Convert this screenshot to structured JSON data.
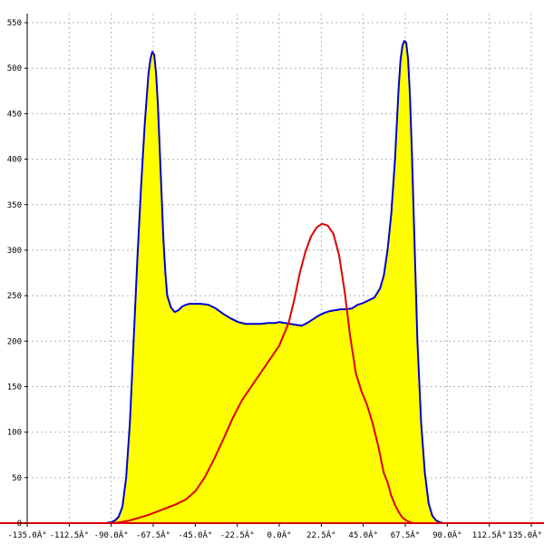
{
  "chart_data": {
    "type": "area",
    "title": "",
    "xlabel": "",
    "ylabel": "",
    "xlim": [
      -135,
      135
    ],
    "ylim": [
      0,
      560
    ],
    "grid": true,
    "x_ticks": [
      -135,
      -112.5,
      -90,
      -67.5,
      -45,
      -22.5,
      0,
      22.5,
      45,
      67.5,
      90,
      112.5,
      135
    ],
    "x_tick_labels": [
      "-135.0Â°",
      "-112.5Â°",
      "-90.0Â°",
      "-67.5Â°",
      "-45.0Â°",
      "-22.5Â°",
      "0.0Â°",
      "22.5Â°",
      "45.0Â°",
      "67.5Â°",
      "90.0Â°",
      "112.5Â°",
      "135.0Â°"
    ],
    "y_ticks": [
      0,
      50,
      100,
      150,
      200,
      250,
      300,
      350,
      400,
      450,
      500,
      550
    ],
    "y_tick_labels": [
      "0",
      "50",
      "100",
      "150",
      "200",
      "250",
      "300",
      "350",
      "400",
      "450",
      "500",
      "550"
    ],
    "series": [
      {
        "color": "#0000cc",
        "fill": "#ffff00",
        "x": [
          -93,
          -90,
          -88,
          -86,
          -84,
          -82,
          -80,
          -78,
          -76,
          -74,
          -72,
          -70,
          -69,
          -68,
          -67,
          -66,
          -65,
          -64,
          -63,
          -62,
          -61,
          -60,
          -58,
          -56,
          -54,
          -52,
          -50,
          -48,
          -45,
          -42,
          -38,
          -34,
          -30,
          -26,
          -22,
          -18,
          -14,
          -10,
          -6,
          -2,
          0,
          3,
          6,
          9,
          12,
          15,
          18,
          21,
          24,
          27,
          30,
          33,
          36,
          39,
          42,
          45,
          48,
          51,
          54,
          56,
          58,
          60,
          62,
          63,
          64,
          65,
          66,
          67,
          68,
          69,
          70,
          71,
          72,
          73,
          74,
          76,
          78,
          80,
          82,
          84,
          86,
          88,
          90,
          92
        ],
        "values": [
          0,
          1,
          3,
          7,
          18,
          50,
          110,
          200,
          290,
          370,
          440,
          495,
          510,
          518,
          515,
          495,
          460,
          410,
          360,
          310,
          275,
          250,
          237,
          232,
          234,
          238,
          240,
          241,
          241,
          241,
          240,
          236,
          230,
          225,
          221,
          219,
          219,
          219,
          220,
          220,
          221,
          220,
          219,
          218,
          217,
          220,
          224,
          228,
          231,
          233,
          234,
          235,
          235,
          236,
          240,
          242,
          245,
          248,
          258,
          272,
          300,
          340,
          400,
          440,
          480,
          510,
          525,
          530,
          528,
          510,
          470,
          410,
          340,
          270,
          200,
          110,
          55,
          22,
          8,
          3,
          1,
          0,
          0,
          0
        ]
      },
      {
        "color": "#dd0000",
        "fill": "none",
        "x": [
          -135,
          -95,
          -90,
          -85,
          -80,
          -75,
          -70,
          -65,
          -60,
          -55,
          -50,
          -45,
          -40,
          -35,
          -30,
          -25,
          -20,
          -15,
          -10,
          -5,
          0,
          5,
          8,
          11,
          14,
          17,
          20,
          23,
          26,
          29,
          32,
          35,
          38,
          41,
          44,
          47,
          50,
          53,
          56,
          58,
          60,
          62,
          64,
          66,
          68,
          70,
          72,
          74,
          76,
          78,
          80,
          135
        ],
        "values": [
          0,
          0,
          0,
          1,
          3,
          6,
          9,
          13,
          17,
          21,
          26,
          35,
          50,
          70,
          92,
          115,
          135,
          150,
          165,
          180,
          195,
          220,
          245,
          275,
          298,
          315,
          325,
          329,
          327,
          318,
          295,
          255,
          205,
          165,
          145,
          130,
          110,
          85,
          55,
          45,
          30,
          20,
          12,
          6,
          3,
          1,
          0,
          0,
          0,
          0,
          0,
          0
        ]
      }
    ]
  }
}
